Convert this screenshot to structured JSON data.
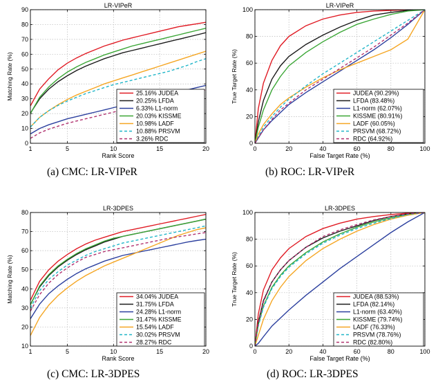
{
  "figure": {
    "captions": [
      "(a)  CMC: LR-VIPeR",
      "(b)  ROC: LR-VIPeR",
      "(c)  CMC: LR-3DPES",
      "(d)  ROC: LR-3DPES"
    ]
  },
  "colors": {
    "JUDEA": "#e01b24",
    "LFDA": "#1a1a1a",
    "L1-norm": "#2b3f9e",
    "KISSME": "#3aa635",
    "LADF": "#f5a623",
    "PRSVM": "#1fb5c8",
    "RDC": "#b0306e"
  },
  "chart_data": [
    {
      "type": "line",
      "title": "LR-VIPeR",
      "xlabel": "Rank Score",
      "ylabel": "Matching Rate (%)",
      "xlim": [
        1,
        20
      ],
      "ylim": [
        0,
        90
      ],
      "xticks": [
        1,
        5,
        10,
        15,
        20
      ],
      "yticks": [
        0,
        10,
        20,
        30,
        40,
        50,
        60,
        70,
        80,
        90
      ],
      "grid": true,
      "legend_position": "bottom-right",
      "x": [
        1,
        2,
        3,
        4,
        5,
        6,
        7,
        8,
        9,
        10,
        11,
        12,
        13,
        14,
        15,
        16,
        17,
        18,
        19,
        20
      ],
      "series": [
        {
          "name": "JUDEA",
          "legend": "25.16% JUDEA",
          "dashed": false,
          "values": [
            25.2,
            36.5,
            43.5,
            49.5,
            54,
            57.5,
            60.5,
            63,
            65.5,
            67.5,
            69.5,
            71,
            72.5,
            74,
            75.5,
            77,
            78.5,
            79.5,
            80.5,
            81.5
          ]
        },
        {
          "name": "LFDA",
          "legend": "20.25% LFDA",
          "dashed": false,
          "values": [
            20.3,
            30,
            36.5,
            41.5,
            45.5,
            49,
            52,
            54.5,
            57,
            59,
            61,
            62.5,
            64,
            65.5,
            67,
            68.5,
            70,
            71.5,
            73,
            74.5
          ]
        },
        {
          "name": "L1-norm",
          "legend": "6.33% L1-norm",
          "dashed": false,
          "values": [
            6.3,
            10,
            12.5,
            14.5,
            16.5,
            18,
            19.5,
            21,
            22.5,
            24,
            25.5,
            27,
            28.5,
            30,
            31.5,
            33,
            34.5,
            36,
            37.5,
            39
          ]
        },
        {
          "name": "KISSME",
          "legend": "20.03% KISSME",
          "dashed": false,
          "values": [
            20,
            31,
            38,
            43.5,
            48,
            51.5,
            54.5,
            57,
            59.5,
            61.5,
            63.5,
            65.5,
            67,
            68.5,
            70,
            71.5,
            73,
            74.5,
            76,
            77.5
          ]
        },
        {
          "name": "LADF",
          "legend": "10.98% LADF",
          "dashed": false,
          "values": [
            11,
            17.5,
            22,
            26,
            29.5,
            32.5,
            35,
            37.5,
            40,
            42,
            44,
            46,
            48,
            50,
            52,
            54,
            56,
            58,
            60,
            62
          ]
        },
        {
          "name": "PRSVM",
          "legend": "10.88% PRSVM",
          "dashed": true,
          "values": [
            10.9,
            17.5,
            22,
            25.5,
            28.5,
            31,
            33.5,
            35.5,
            37.5,
            39.5,
            41,
            42.5,
            44,
            45.5,
            47,
            48.5,
            50.5,
            52.5,
            55,
            57
          ]
        },
        {
          "name": "RDC",
          "legend": "3.26% RDC",
          "dashed": true,
          "values": [
            3.3,
            7,
            9.5,
            11.5,
            13.5,
            15,
            16.5,
            18,
            19.5,
            21,
            22.5,
            24,
            25.5,
            27,
            28.5,
            30,
            31.5,
            33,
            34.5,
            36
          ]
        }
      ]
    },
    {
      "type": "line",
      "title": "LR-VIPeR",
      "xlabel": "False Target Rate (%)",
      "ylabel": "True Target Rate (%)",
      "xlim": [
        0,
        100
      ],
      "ylim": [
        0,
        100
      ],
      "xticks": [
        0,
        20,
        40,
        60,
        80,
        100
      ],
      "yticks": [
        0,
        20,
        40,
        60,
        80,
        100
      ],
      "grid": true,
      "legend_position": "bottom-right",
      "x": [
        0,
        2,
        5,
        10,
        15,
        20,
        30,
        40,
        50,
        60,
        70,
        80,
        90,
        100
      ],
      "series": [
        {
          "name": "JUDEA",
          "legend": "JUDEA (90.29%)",
          "dashed": false,
          "values": [
            0,
            26,
            45,
            62,
            73,
            80,
            88,
            93,
            96,
            98,
            99,
            99.5,
            100,
            100
          ]
        },
        {
          "name": "LFDA",
          "legend": "LFDA (83.48%)",
          "dashed": false,
          "values": [
            0,
            16,
            32,
            48,
            58,
            65,
            74,
            81,
            87,
            92,
            96,
            98,
            99.5,
            100
          ]
        },
        {
          "name": "L1-norm",
          "legend": "L1-norm (62.07%)",
          "dashed": false,
          "values": [
            0,
            4,
            10,
            17,
            23,
            29,
            38,
            46,
            54,
            62,
            70,
            79,
            89,
            100
          ]
        },
        {
          "name": "KISSME",
          "legend": "KISSME (80.91%)",
          "dashed": false,
          "values": [
            0,
            12,
            25,
            40,
            50,
            58,
            68,
            76,
            83,
            89,
            93,
            96.5,
            99,
            100
          ]
        },
        {
          "name": "LADF",
          "legend": "LADF (60.05%)",
          "dashed": false,
          "values": [
            0,
            7,
            14,
            22,
            29,
            34,
            42,
            49,
            55,
            60,
            65,
            70,
            78,
            100
          ]
        },
        {
          "name": "PRSVM",
          "legend": "PRSVM (68.72%)",
          "dashed": true,
          "values": [
            0,
            5,
            12,
            20,
            27,
            33,
            43,
            52,
            60,
            68,
            76,
            84,
            92,
            100
          ]
        },
        {
          "name": "RDC",
          "legend": "RDC (64.92%)",
          "dashed": true,
          "values": [
            0,
            4,
            10,
            18,
            25,
            30,
            40,
            48,
            56,
            64,
            72,
            81,
            90,
            100
          ]
        }
      ]
    },
    {
      "type": "line",
      "title": "LR-3DPES",
      "xlabel": "Rank Score",
      "ylabel": "Matching Rate (%)",
      "xlim": [
        1,
        20
      ],
      "ylim": [
        10,
        80
      ],
      "xticks": [
        1,
        5,
        10,
        15,
        20
      ],
      "yticks": [
        10,
        20,
        30,
        40,
        50,
        60,
        70,
        80
      ],
      "grid": true,
      "legend_position": "bottom-right",
      "x": [
        1,
        2,
        3,
        4,
        5,
        6,
        7,
        8,
        9,
        10,
        11,
        12,
        13,
        14,
        15,
        16,
        17,
        18,
        19,
        20
      ],
      "series": [
        {
          "name": "JUDEA",
          "legend": "34.04% JUDEA",
          "dashed": false,
          "values": [
            34,
            44,
            50,
            54.5,
            58,
            61,
            63.5,
            65.5,
            67,
            68.5,
            70,
            71,
            72,
            73,
            74,
            75,
            76,
            77,
            78,
            79
          ]
        },
        {
          "name": "LFDA",
          "legend": "31.75% LFDA",
          "dashed": false,
          "values": [
            31.8,
            41,
            47,
            51.5,
            55,
            58,
            60.5,
            62.5,
            64.5,
            66,
            67.5,
            68.5,
            69.5,
            70.5,
            71.5,
            72.5,
            73.5,
            74.5,
            75.5,
            76.5
          ]
        },
        {
          "name": "L1-norm",
          "legend": "24.28% L1-norm",
          "dashed": false,
          "values": [
            24.3,
            32,
            37.5,
            41.5,
            45,
            48,
            50.5,
            52.5,
            54.5,
            56,
            57.5,
            58.5,
            59.5,
            60.5,
            61.5,
            62.5,
            63.5,
            64.5,
            65.3,
            66
          ]
        },
        {
          "name": "KISSME",
          "legend": "31.47% KISSME",
          "dashed": false,
          "values": [
            31.5,
            41.5,
            47.5,
            52,
            55.5,
            58.5,
            61,
            63,
            65,
            66.5,
            67.5,
            68.5,
            69.5,
            70.5,
            71.5,
            72.5,
            73.5,
            74.5,
            75.5,
            76.5
          ]
        },
        {
          "name": "LADF",
          "legend": "15.54% LADF",
          "dashed": false,
          "values": [
            15.5,
            25,
            31.5,
            36.5,
            40.5,
            44,
            47,
            49.5,
            52,
            54,
            56,
            58,
            60,
            62,
            64,
            66,
            68,
            69.5,
            71,
            72
          ]
        },
        {
          "name": "PRSVM",
          "legend": "30.02% PRSVM",
          "dashed": true,
          "values": [
            30,
            39,
            45,
            49,
            52.5,
            55,
            57.5,
            59.5,
            61,
            62.5,
            64,
            65,
            66,
            67,
            68,
            69,
            70,
            71,
            72,
            73
          ]
        },
        {
          "name": "RDC",
          "legend": "28.27% RDC",
          "dashed": true,
          "values": [
            28.3,
            37,
            43,
            47.5,
            51,
            54,
            56.5,
            58,
            59.5,
            60.5,
            61.5,
            62.5,
            63.5,
            64.5,
            65.5,
            66.5,
            67.3,
            68,
            68.8,
            69.5
          ]
        }
      ]
    },
    {
      "type": "line",
      "title": "LR-3DPES",
      "xlabel": "False Target Rate (%)",
      "ylabel": "True Target Rate (%)",
      "xlim": [
        0,
        100
      ],
      "ylim": [
        0,
        100
      ],
      "xticks": [
        0,
        20,
        40,
        60,
        80,
        100
      ],
      "yticks": [
        0,
        20,
        40,
        60,
        80,
        100
      ],
      "grid": true,
      "legend_position": "bottom-right",
      "x": [
        0,
        2,
        5,
        10,
        15,
        20,
        30,
        40,
        50,
        60,
        70,
        80,
        90,
        100
      ],
      "series": [
        {
          "name": "JUDEA",
          "legend": "JUDEA (88.53%)",
          "dashed": false,
          "values": [
            0,
            24,
            42,
            57,
            66,
            73,
            82,
            88,
            92,
            95,
            97,
            98.5,
            99.5,
            100
          ]
        },
        {
          "name": "LFDA",
          "legend": "LFDA (82.14%)",
          "dashed": false,
          "values": [
            0,
            18,
            34,
            48,
            57,
            64,
            74,
            81,
            86,
            90,
            94,
            97,
            99,
            100
          ]
        },
        {
          "name": "L1-norm",
          "legend": "L1-norm (63.40%)",
          "dashed": false,
          "values": [
            0,
            2,
            7,
            15,
            21,
            27,
            38,
            48,
            58,
            67,
            76,
            85,
            93,
            100
          ]
        },
        {
          "name": "KISSME",
          "legend": "KISSME (79.74%)",
          "dashed": false,
          "values": [
            0,
            16,
            30,
            44,
            53,
            60,
            70,
            78,
            84,
            89,
            93,
            96,
            98.5,
            100
          ]
        },
        {
          "name": "LADF",
          "legend": "LADF (76.33%)",
          "dashed": false,
          "values": [
            0,
            8,
            20,
            34,
            44,
            52,
            64,
            73,
            80,
            86,
            91,
            95,
            98,
            100
          ]
        },
        {
          "name": "PRSVM",
          "legend": "PRSVM (78.76%)",
          "dashed": true,
          "values": [
            0,
            15,
            29,
            43,
            52,
            59,
            69,
            77,
            83,
            88,
            92,
            95.5,
            98.5,
            100
          ]
        },
        {
          "name": "RDC",
          "legend": "RDC (82.80%)",
          "dashed": true,
          "values": [
            0,
            17,
            33,
            48,
            57,
            64,
            74,
            82,
            87,
            91,
            94.5,
            97,
            99,
            100
          ]
        }
      ]
    }
  ]
}
